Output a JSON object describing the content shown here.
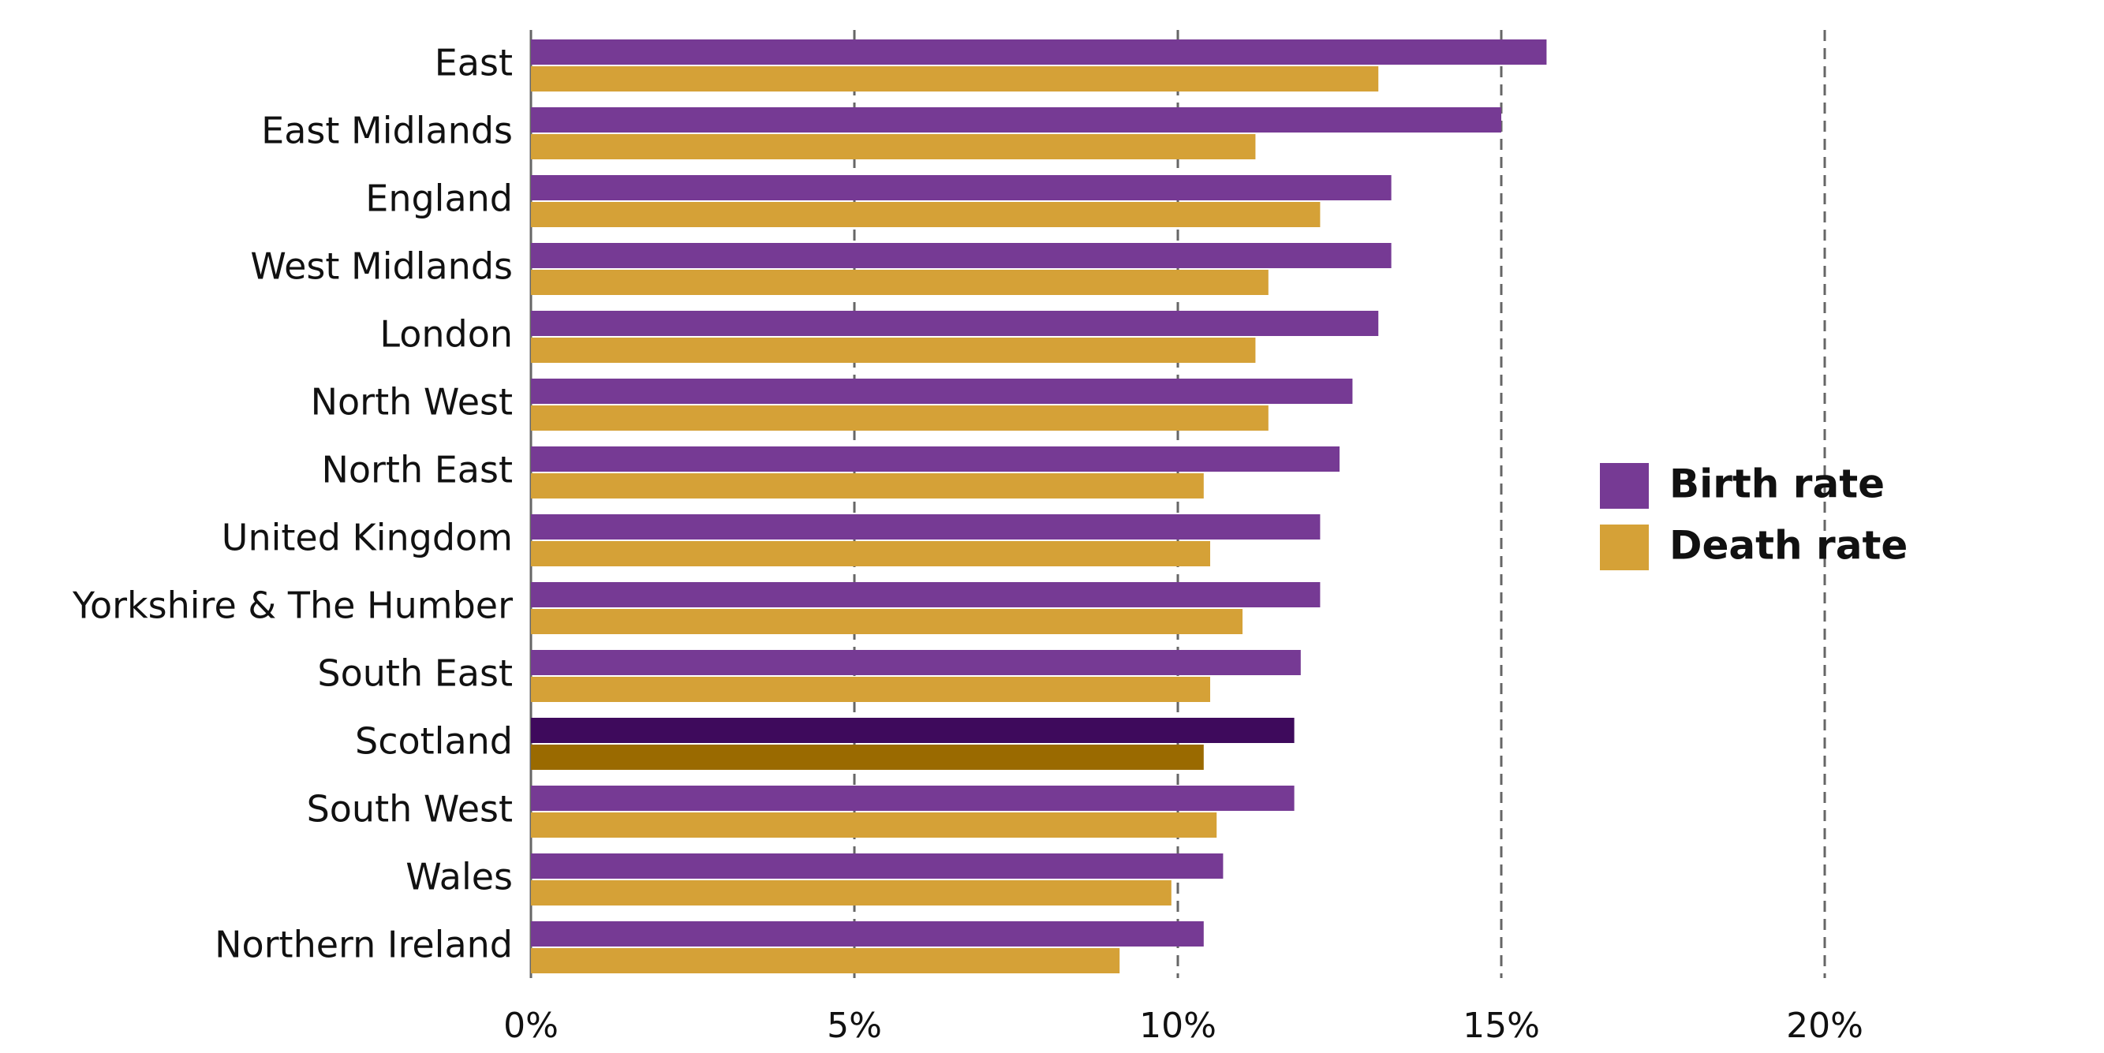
{
  "chart_data": {
    "type": "hbar",
    "categories": [
      "East",
      "East Midlands",
      "England",
      "West Midlands",
      "London",
      "North West",
      "North East",
      "United Kingdom",
      "Yorkshire & The Humber",
      "South East",
      "Scotland",
      "South West",
      "Wales",
      "Northern Ireland"
    ],
    "series": [
      {
        "name": "Birth rate",
        "color": "#763a94",
        "highlight_color": "#3e0a5c",
        "values": [
          15.7,
          15.0,
          13.3,
          13.3,
          13.1,
          12.7,
          12.5,
          12.2,
          12.2,
          11.9,
          11.8,
          11.8,
          10.7,
          10.4
        ]
      },
      {
        "name": "Death rate",
        "color": "#d5a137",
        "highlight_color": "#9a6a00",
        "values": [
          13.1,
          11.2,
          12.2,
          11.4,
          11.2,
          11.4,
          10.4,
          10.5,
          11.0,
          10.5,
          10.4,
          10.6,
          9.9,
          9.1
        ]
      }
    ],
    "highlight_category": "Scotland",
    "xlim": [
      0,
      24.4
    ],
    "xticks": [
      {
        "value": 0,
        "label": "0%"
      },
      {
        "value": 5,
        "label": "5%"
      },
      {
        "value": 10,
        "label": "10%"
      },
      {
        "value": 15,
        "label": "15%"
      },
      {
        "value": 20,
        "label": "20%"
      }
    ],
    "grid": true,
    "legend": "right"
  }
}
